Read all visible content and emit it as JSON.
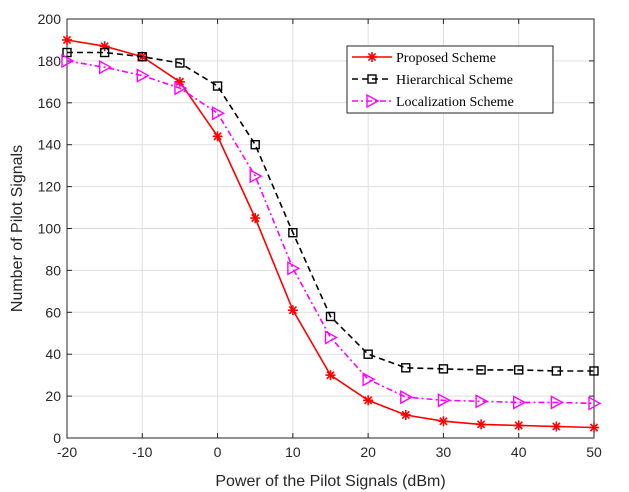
{
  "chart_data": {
    "type": "line",
    "title": "",
    "xlabel": "Power of the Pilot Signals (dBm)",
    "ylabel": "Number of Pilot Signals",
    "xlim": [
      -20,
      50
    ],
    "ylim": [
      0,
      200
    ],
    "xticks": [
      "-20",
      "-10",
      "0",
      "10",
      "20",
      "30",
      "40",
      "50"
    ],
    "yticks": [
      "0",
      "20",
      "40",
      "60",
      "80",
      "100",
      "120",
      "140",
      "160",
      "180",
      "200"
    ],
    "grid": true,
    "legend_position": "top-right",
    "x": [
      -20,
      -15,
      -10,
      -5,
      0,
      5,
      10,
      15,
      20,
      25,
      30,
      35,
      40,
      45,
      50
    ],
    "series": [
      {
        "name": "Proposed Scheme",
        "color": "#ff0000",
        "line_style": "solid",
        "marker": "asterisk",
        "values": [
          190,
          187,
          182,
          170,
          144,
          105,
          61,
          30,
          18,
          11,
          8,
          6.5,
          6,
          5.5,
          5
        ]
      },
      {
        "name": "Hierarchical Scheme",
        "color": "#000000",
        "line_style": "dashed",
        "marker": "square",
        "values": [
          184,
          184,
          182,
          179,
          168,
          140,
          98,
          58,
          40,
          33.5,
          33,
          32.5,
          32.5,
          32,
          32
        ]
      },
      {
        "name": "Localization Scheme",
        "color": "#ff00ff",
        "line_style": "dashdot",
        "marker": "triangle-right",
        "values": [
          180,
          177,
          173,
          167,
          155,
          125,
          81,
          48,
          28,
          19.5,
          18,
          17.5,
          17,
          17,
          16.5
        ]
      }
    ]
  }
}
